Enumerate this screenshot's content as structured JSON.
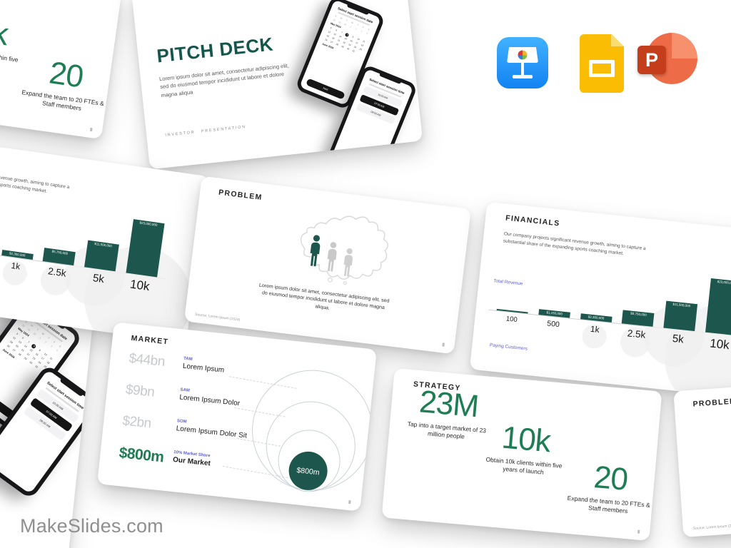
{
  "page": {
    "brand": "MakeSlides.com"
  },
  "colors": {
    "accent_green": "#1f7d54",
    "chart_teal": "#1d564c",
    "pitch_title_teal": "#14564b",
    "axis_label_purple": "#5f5fd6",
    "muted_value_gray": "#c6cacd",
    "brand_gray": "#8f8f8f",
    "keynote_blue": "#1283f2",
    "slides_yellow": "#fbbc04",
    "powerpoint_orange": "#ed6c47"
  },
  "app_icons": {
    "keynote": "Keynote",
    "google_slides": "Google Slides",
    "powerpoint": "PowerPoint",
    "powerpoint_letter": "P"
  },
  "slides": {
    "pitch_deck": {
      "title": "PITCH DECK",
      "body": "Lorem ipsum dolor sit amet, consectetur adipiscing elit, sed do eiusmod tempor incididunt ut labore et dolore magna aliqua",
      "footer": "INVESTOR PRESENTATION",
      "phone_date": {
        "header": "Select start session date",
        "weekdays": [
          "S",
          "M",
          "T",
          "W",
          "T",
          "F",
          "S"
        ],
        "lead_row": [
          "28",
          "29",
          "30",
          "1",
          "2",
          "3",
          "4"
        ],
        "month_top": "May 2024",
        "days": [
          "5",
          "6",
          "7",
          "8",
          "9",
          "10",
          "11",
          "12",
          "13",
          "14",
          "15",
          "16",
          "17",
          "18",
          "19",
          "20",
          "21",
          "22",
          "23",
          "24",
          "25",
          "26",
          "27",
          "28",
          "29",
          "30",
          "31"
        ],
        "selected_day": "8",
        "month_bottom": "June 2024",
        "cta": "Next"
      },
      "phone_time": {
        "header": "Select start session time",
        "options": [
          "10:00 AM",
          "07:00 AM",
          "09:00 AM"
        ],
        "selected": "07:00 AM"
      }
    },
    "problem": {
      "title": "PROBLEM",
      "body": "Lorem ipsum dolor sit amet, consectetur adipiscing elit, sed do eiusmod tempor incididunt ut labore et dolore magna aliqua.",
      "source": "Source: Lorem Ipsum (2024)"
    },
    "financials": {
      "title": "FINANCIALS",
      "body": "Our company projects significant revenue growth, aiming to capture a substantial share of the expanding sports coaching market.",
      "chart_data": {
        "type": "bar",
        "categories": [
          "100",
          "500",
          "1k",
          "2.5k",
          "5k",
          "10k"
        ],
        "values": [
          230000,
          1150000,
          2300000,
          5750000,
          11500000,
          23000000
        ],
        "bar_labels": [
          "",
          "$1,150,000",
          "$2,300,000",
          "$5,750,000",
          "$11,500,000",
          "$23,000,000"
        ],
        "ymax": 23000000,
        "xlabel": "Paying Customers",
        "ylabel": "Total Revenue",
        "legend": "none",
        "grid": false
      }
    },
    "market": {
      "title": "MARKET",
      "rows": [
        {
          "value": "$44bn",
          "tag": "TAM",
          "label": "Lorem Ipsum"
        },
        {
          "value": "$9bn",
          "tag": "SAM",
          "label": "Lorem Ipsum Dolor"
        },
        {
          "value": "$2bn",
          "tag": "SOM",
          "label": "Lorem Ipsum Dolor Sit"
        },
        {
          "value": "$800m",
          "tag": "10% Market Share",
          "label": "Our Market"
        }
      ],
      "bubble_label": "$800m"
    },
    "strategy": {
      "title": "STRATEGY",
      "stats": [
        {
          "value": "23M",
          "caption": "Tap into a target market of 23 million people"
        },
        {
          "value": "10k",
          "caption": "Obtain 10k clients within five years of launch"
        },
        {
          "value": "20",
          "caption": "Expand the team to 20 FTEs & Staff members"
        }
      ]
    }
  }
}
